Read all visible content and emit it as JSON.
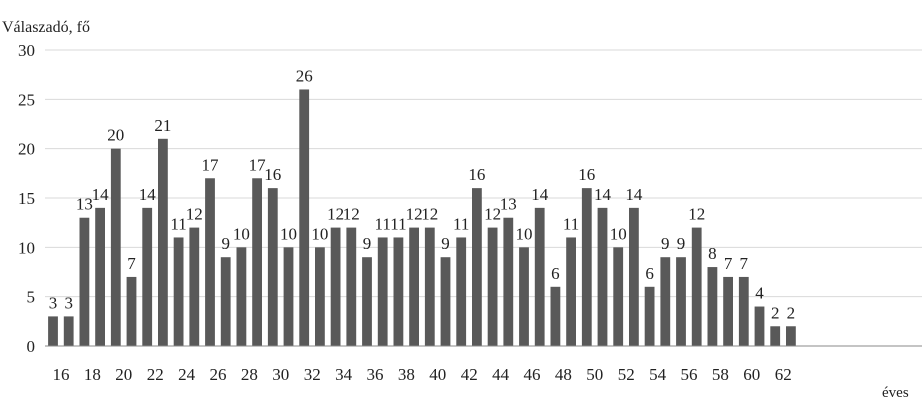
{
  "chart_data": {
    "type": "bar",
    "ylabel": "Válaszadó, fő",
    "xlabel": "éves",
    "ylim": [
      0,
      30
    ],
    "yticks": [
      0,
      5,
      10,
      15,
      20,
      25,
      30
    ],
    "grid": true,
    "bar_color": "#595959",
    "grid_color": "#d9d9d9",
    "categories": [
      16,
      17,
      18,
      19,
      20,
      21,
      22,
      23,
      24,
      25,
      26,
      27,
      28,
      29,
      30,
      31,
      32,
      33,
      34,
      35,
      36,
      37,
      38,
      39,
      40,
      41,
      42,
      43,
      44,
      45,
      46,
      47,
      48,
      49,
      50,
      51,
      52,
      53,
      54,
      55,
      56,
      57,
      58,
      59,
      60,
      61,
      62,
      63
    ],
    "values": [
      3,
      3,
      13,
      14,
      20,
      7,
      14,
      21,
      11,
      12,
      17,
      9,
      10,
      17,
      16,
      10,
      26,
      10,
      12,
      12,
      9,
      11,
      11,
      12,
      12,
      9,
      11,
      16,
      12,
      13,
      10,
      14,
      6,
      11,
      16,
      14,
      10,
      14,
      6,
      9,
      9,
      12,
      8,
      7,
      7,
      4,
      2,
      2
    ],
    "xtick_labels": [
      "16",
      "18",
      "20",
      "22",
      "24",
      "26",
      "28",
      "30",
      "32",
      "34",
      "36",
      "38",
      "40",
      "42",
      "44",
      "46",
      "48",
      "50",
      "52",
      "54",
      "56",
      "58",
      "60",
      "62"
    ]
  }
}
